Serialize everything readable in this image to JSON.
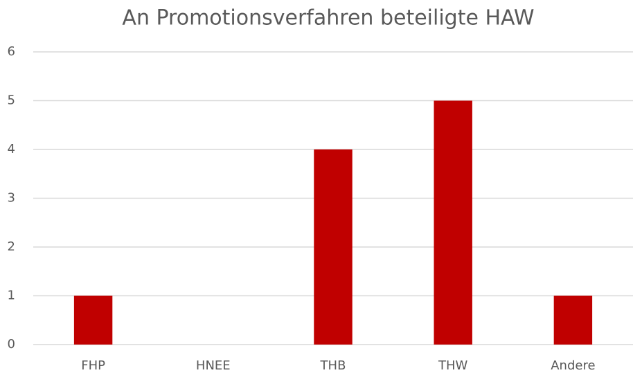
{
  "chart_data": {
    "type": "bar",
    "title": "An Promotionsverfahren beteiligte HAW",
    "categories": [
      "FHP",
      "HNEE",
      "THB",
      "THW",
      "Andere"
    ],
    "values": [
      1,
      0,
      4,
      5,
      1
    ],
    "color": "#c00000",
    "ylim": [
      0,
      6
    ],
    "yticks": [
      0,
      1,
      2,
      3,
      4,
      5,
      6
    ],
    "grid": true
  }
}
